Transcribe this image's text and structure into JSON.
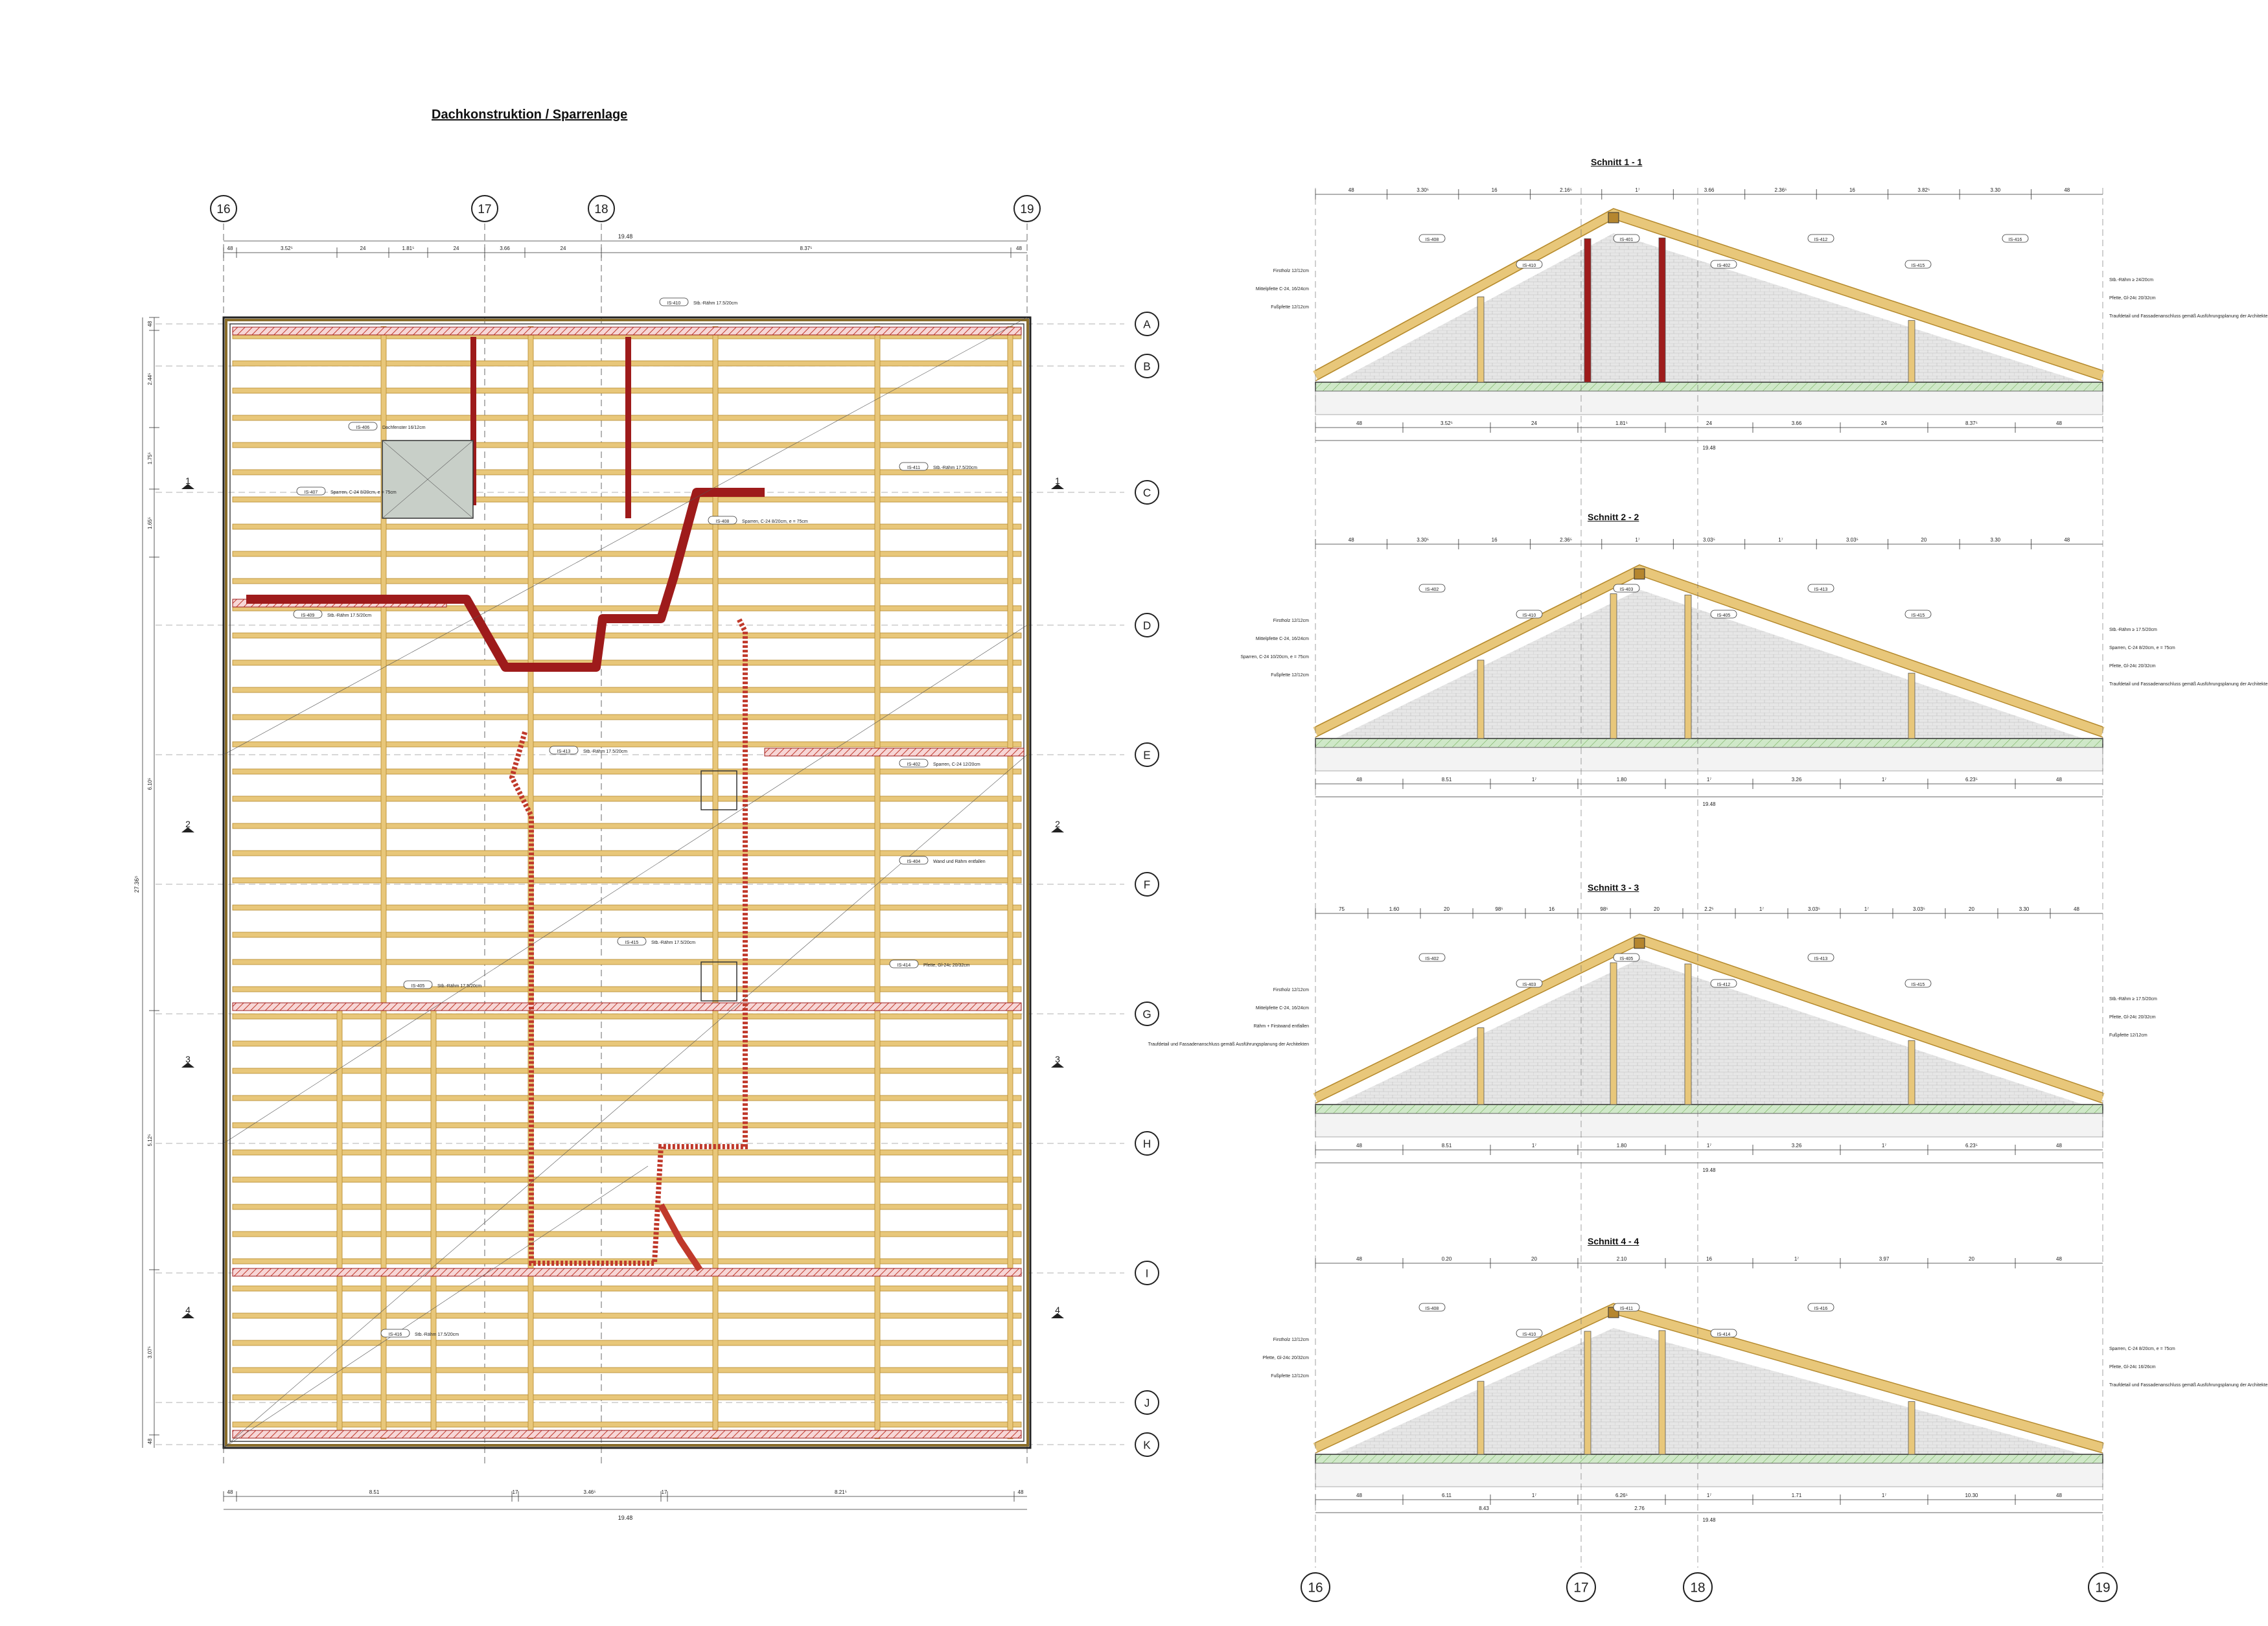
{
  "plan": {
    "title": "Dachkonstruktion / Sparrenlage",
    "axes_top": [
      "16",
      "17",
      "18",
      "19"
    ],
    "axes_right": [
      "A",
      "B",
      "C",
      "D",
      "E",
      "F",
      "G",
      "H",
      "I",
      "J",
      "K"
    ],
    "section_marks": [
      "1",
      "2",
      "3",
      "4"
    ],
    "dims_top": [
      "48",
      "3.52⁵",
      "24",
      "1.81⁵",
      "24",
      "3.66",
      "24",
      "8.37⁵",
      "48"
    ],
    "dims_top_total": "19.48",
    "dims_bottom": [
      "48",
      "8.51",
      "17",
      "3.46⁵",
      "17",
      "8.21⁵",
      "48"
    ],
    "dims_bottom_total": "19.48",
    "dims_left": [
      "48",
      "2.44⁵",
      "1.75⁵",
      "1.65⁵",
      "6.10⁵",
      "5.12⁵",
      "3.07⁵",
      "48"
    ],
    "dims_left_total": "27.36⁵",
    "labels": [
      {
        "tag": "IS-410",
        "text": "Stb.-Rähm 17.5/20cm"
      },
      {
        "tag": "IS-411",
        "text": "Stb.-Rähm 17.5/20cm"
      },
      {
        "tag": "IS-406",
        "text": "Dachfenster 16/12cm"
      },
      {
        "tag": "IS-407",
        "text": "Sparren, C-24 8/20cm, e = 75cm"
      },
      {
        "tag": "IS-408",
        "text": "Sparren, C-24 8/20cm, e = 75cm"
      },
      {
        "tag": "IS-409",
        "text": "Stb.-Rähm 17.5/20cm"
      },
      {
        "tag": "IS-413",
        "text": "Stb.-Rähm 17.5/20cm"
      },
      {
        "tag": "IS-402",
        "text": "Sparren, C-24 12/20cm"
      },
      {
        "tag": "IS-415",
        "text": "Stb.-Rähm 17.5/20cm"
      },
      {
        "tag": "IS-404",
        "text": "Wand und Rähm entfallen"
      },
      {
        "tag": "IS-405",
        "text": "Stb.-Rähm 17.5/20cm"
      },
      {
        "tag": "IS-414",
        "text": "Pfette, Gl-24c 20/32cm"
      },
      {
        "tag": "IS-416",
        "text": "Stb.-Rähm 17.5/20cm"
      }
    ]
  },
  "sections": [
    {
      "title": "Schnitt 1 - 1",
      "dims_top": [
        "48",
        "3.30⁵",
        "16",
        "2.16⁵",
        "1⁷",
        "3.66",
        "2.36⁵",
        "16",
        "3.82⁵",
        "3.30",
        "48"
      ],
      "dims_bottom": [
        "48",
        "3.52⁵",
        "24",
        "1.81⁵",
        "24",
        "3.66",
        "24",
        "8.37⁵",
        "48"
      ],
      "total": "19.48",
      "tags": [
        "IS-408",
        "IS-410",
        "IS-401",
        "IS-402",
        "IS-412",
        "IS-415",
        "IS-416"
      ],
      "notes": [
        "Firstholz 12/12cm",
        "Stb.-Rähm ≥ 24/20cm",
        "Mittelpfette C-24, 16/24cm",
        "Pfette, Gl-24c 20/32cm",
        "Fußpfette 12/12cm",
        "Traufdetail und Fassadenanschluss gemäß Ausführungsplanung der Architekten"
      ]
    },
    {
      "title": "Schnitt 2 - 2",
      "dims_top": [
        "48",
        "3.30⁵",
        "16",
        "2.36⁵",
        "1⁷",
        "3.03⁵",
        "1⁷",
        "3.03⁵",
        "20",
        "3.30",
        "48"
      ],
      "dims_bottom": [
        "48",
        "8.51",
        "1⁷",
        "1.80",
        "1⁷",
        "3.26",
        "1⁷",
        "6.23⁵",
        "48"
      ],
      "total": "19.48",
      "tags": [
        "IS-402",
        "IS-410",
        "IS-403",
        "IS-405",
        "IS-413",
        "IS-415"
      ],
      "notes": [
        "Firstholz 12/12cm",
        "Stb.-Rähm ≥ 17.5/20cm",
        "Mittelpfette C-24, 16/24cm",
        "Sparren, C-24 8/20cm, e = 75cm",
        "Sparren, C-24 10/20cm, e = 75cm",
        "Pfette, Gl-24c 20/32cm",
        "Fußpfette 12/12cm",
        "Traufdetail und Fassadenanschluss gemäß Ausführungsplanung der Architekten"
      ]
    },
    {
      "title": "Schnitt 3 - 3",
      "dims_top": [
        "75",
        "1.60",
        "20",
        "98⁵",
        "16",
        "98⁵",
        "20",
        "2.2⁵",
        "1⁷",
        "3.03⁵",
        "1⁷",
        "3.03⁵",
        "20",
        "3.30",
        "48"
      ],
      "dims_bottom": [
        "48",
        "8.51",
        "1⁷",
        "1.80",
        "1⁷",
        "3.26",
        "1⁷",
        "6.23⁵",
        "48"
      ],
      "total": "19.48",
      "tags": [
        "IS-402",
        "IS-403",
        "IS-405",
        "IS-412",
        "IS-413",
        "IS-415"
      ],
      "notes": [
        "Firstholz 12/12cm",
        "Stb.-Rähm ≥ 17.5/20cm",
        "Mittelpfette C-24, 16/24cm",
        "Pfette, Gl-24c 20/32cm",
        "Rähm + Firstwand entfallen",
        "Fußpfette 12/12cm",
        "Traufdetail und Fassadenanschluss gemäß Ausführungsplanung der Architekten"
      ]
    },
    {
      "title": "Schnitt 4 - 4",
      "dims_top": [
        "48",
        "0.20",
        "20",
        "2.10",
        "16",
        "1⁷",
        "3.97",
        "20",
        "48"
      ],
      "dims_bottom": [
        "48",
        "6.11",
        "1⁷",
        "6.26⁵",
        "1⁷",
        "1.71",
        "1⁷",
        "10.30",
        "48"
      ],
      "subtotals": [
        "8.43",
        "2.76"
      ],
      "total": "19.48",
      "tags": [
        "IS-408",
        "IS-410",
        "IS-411",
        "IS-414",
        "IS-416"
      ],
      "notes": [
        "Firstholz 12/12cm",
        "Sparren, C-24 8/20cm, e = 75cm",
        "Pfette, Gl-24c 20/32cm",
        "Pfette, Gl-24c 16/26cm",
        "Fußpfette 12/12cm",
        "Traufdetail und Fassadenanschluss gemäß Ausführungsplanung der Architekten"
      ]
    }
  ],
  "bottom_axes": [
    "16",
    "17",
    "18",
    "19"
  ],
  "colors": {
    "timber": "#e8c77a",
    "timber_edge": "#b58a2e",
    "steel": "#9e1b1b",
    "wall_hatch": "#e9a0a0",
    "floor": "#cfe8c8",
    "line": "#222222",
    "masonry": "#e6e6e6"
  }
}
